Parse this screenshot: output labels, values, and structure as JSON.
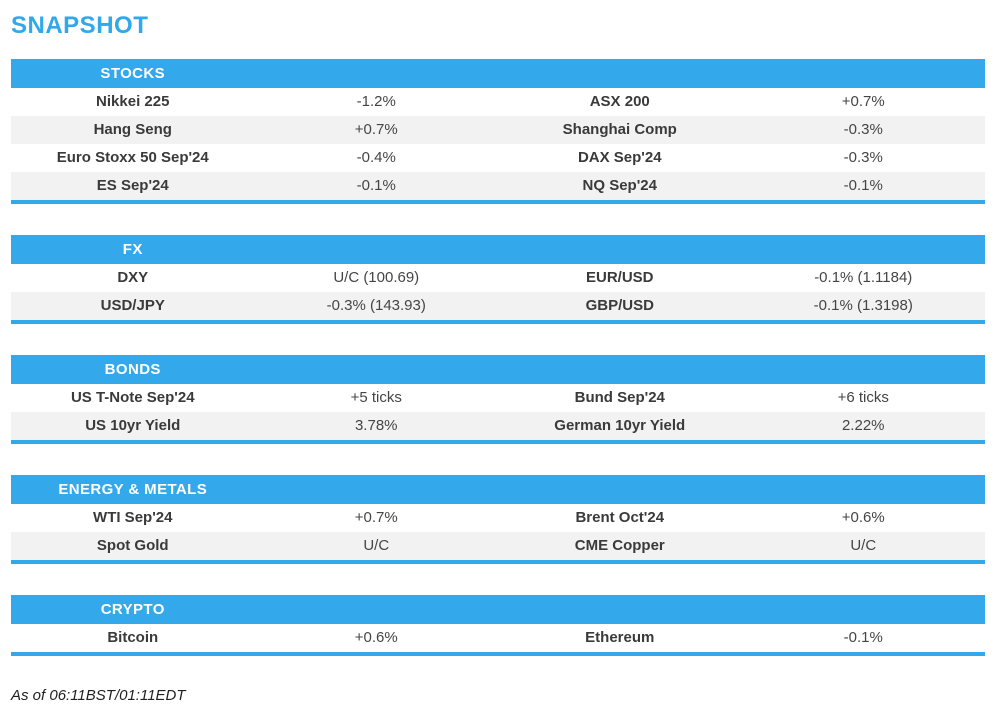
{
  "page": {
    "title": "SNAPSHOT",
    "footer": "As of 06:11BST/01:11EDT"
  },
  "colors": {
    "accent_blue": "#33a9ec",
    "title_blue": "#2fa9ea",
    "row_alt_gray": "#f2f2f2",
    "header_text": "#ffffff",
    "body_text": "#3a3a3a"
  },
  "sections": [
    {
      "header": "STOCKS",
      "rows": [
        {
          "left_label": "Nikkei 225",
          "left_value": "-1.2%",
          "right_label": "ASX 200",
          "right_value": "+0.7%"
        },
        {
          "left_label": "Hang Seng",
          "left_value": "+0.7%",
          "right_label": "Shanghai Comp",
          "right_value": "-0.3%"
        },
        {
          "left_label": "Euro Stoxx 50 Sep'24",
          "left_value": "-0.4%",
          "right_label": "DAX Sep'24",
          "right_value": "-0.3%"
        },
        {
          "left_label": "ES Sep'24",
          "left_value": "-0.1%",
          "right_label": "NQ Sep'24",
          "right_value": "-0.1%"
        }
      ]
    },
    {
      "header": "FX",
      "rows": [
        {
          "left_label": "DXY",
          "left_value": "U/C (100.69)",
          "right_label": "EUR/USD",
          "right_value": "-0.1% (1.1184)"
        },
        {
          "left_label": "USD/JPY",
          "left_value": "-0.3% (143.93)",
          "right_label": "GBP/USD",
          "right_value": "-0.1% (1.3198)"
        }
      ]
    },
    {
      "header": "BONDS",
      "rows": [
        {
          "left_label": "US T-Note Sep'24",
          "left_value": "+5 ticks",
          "right_label": "Bund Sep'24",
          "right_value": "+6 ticks"
        },
        {
          "left_label": "US 10yr Yield",
          "left_value": "3.78%",
          "right_label": "German 10yr Yield",
          "right_value": "2.22%"
        }
      ]
    },
    {
      "header": "ENERGY & METALS",
      "rows": [
        {
          "left_label": "WTI Sep'24",
          "left_value": "+0.7%",
          "right_label": "Brent Oct'24",
          "right_value": "+0.6%"
        },
        {
          "left_label": "Spot Gold",
          "left_value": "U/C",
          "right_label": "CME Copper",
          "right_value": "U/C"
        }
      ]
    },
    {
      "header": "CRYPTO",
      "rows": [
        {
          "left_label": "Bitcoin",
          "left_value": "+0.6%",
          "right_label": "Ethereum",
          "right_value": "-0.1%"
        }
      ]
    }
  ]
}
